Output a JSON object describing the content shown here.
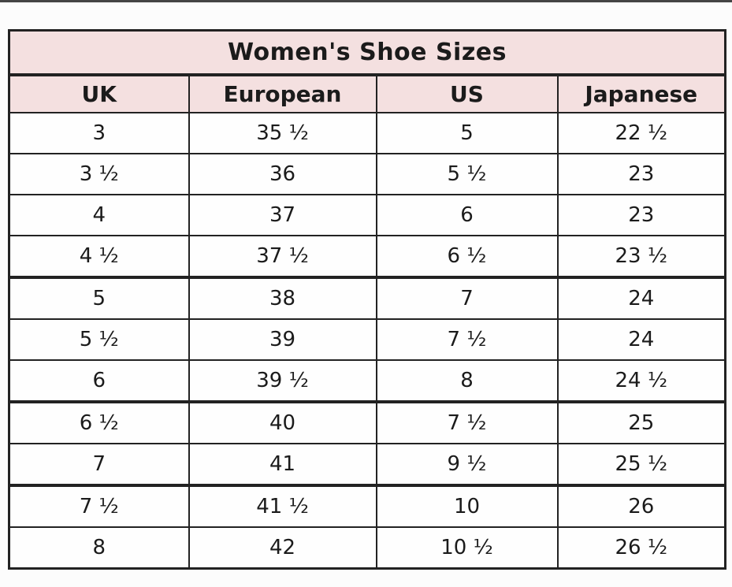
{
  "colors": {
    "header_bg": "#f4e0e0",
    "border": "#222222",
    "text": "#1b1b1b"
  },
  "chart_data": {
    "type": "table",
    "title": "Women's Shoe Sizes",
    "columns": [
      "UK",
      "European",
      "US",
      "Japanese"
    ],
    "rows": [
      [
        "3",
        "35 ½",
        "5",
        "22 ½"
      ],
      [
        "3 ½",
        "36",
        "5 ½",
        "23"
      ],
      [
        "4",
        "37",
        "6",
        "23"
      ],
      [
        "4 ½",
        "37 ½",
        "6 ½",
        "23 ½"
      ],
      [
        "5",
        "38",
        "7",
        "24"
      ],
      [
        "5 ½",
        "39",
        "7 ½",
        "24"
      ],
      [
        "6",
        "39 ½",
        "8",
        "24 ½"
      ],
      [
        "6 ½",
        "40",
        "7 ½",
        "25"
      ],
      [
        "7",
        "41",
        "9 ½",
        "25 ½"
      ],
      [
        "7 ½",
        "41 ½",
        "10",
        "26"
      ],
      [
        "8",
        "42",
        "10 ½",
        "26 ½"
      ]
    ],
    "thick_border_after_rows": [
      4,
      7,
      9
    ],
    "layout_hints": {
      "grid": true,
      "header_rows_shaded": true
    }
  }
}
